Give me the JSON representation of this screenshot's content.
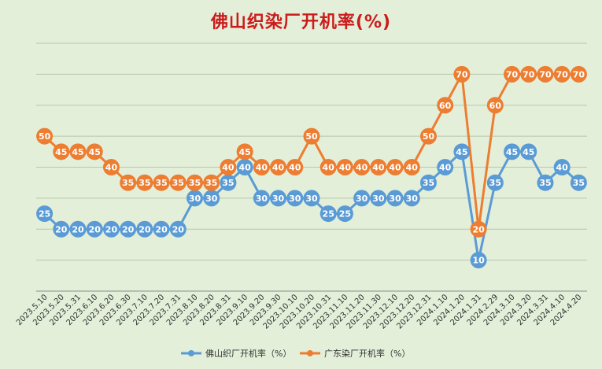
{
  "chart_data": {
    "type": "line",
    "title": "佛山织染厂开机率(%)",
    "xlabel": "",
    "ylabel": "",
    "ylim": [
      0,
      80
    ],
    "grid": "horizontal",
    "legend_position": "bottom",
    "categories": [
      "2023.5.10",
      "2023.5.20",
      "2023.5.31",
      "2023.6.10",
      "2023.6.20",
      "2023.6.30",
      "2023.7.10",
      "2023.7.20",
      "2023.7.31",
      "2023.8.10",
      "2023.8.20",
      "2023.8.31",
      "2023.9.10",
      "2023.9.20",
      "2023.9.30",
      "2023.10.10",
      "2023.10.20",
      "2023.10.31",
      "2023.11.10",
      "2023.11.20",
      "2023.11.30",
      "2023.12.10",
      "2023.12.20",
      "2023.12.31",
      "2024.1.10",
      "2024.1.20",
      "2024.1.31",
      "2024.2.29",
      "2024.3.10",
      "2024.3.20",
      "2024.3.31",
      "2024.4.10",
      "2024.4.20"
    ],
    "series": [
      {
        "name": "佛山织厂开机率（%）",
        "color": "#5b9bd5",
        "values": [
          25,
          20,
          20,
          20,
          20,
          20,
          20,
          20,
          20,
          30,
          30,
          35,
          40,
          30,
          30,
          30,
          30,
          25,
          25,
          30,
          30,
          30,
          30,
          35,
          40,
          45,
          10,
          35,
          45,
          45,
          35,
          40,
          35
        ]
      },
      {
        "name": "广东染厂开机率（%）",
        "color": "#ed7d31",
        "values": [
          50,
          45,
          45,
          45,
          40,
          35,
          35,
          35,
          35,
          35,
          35,
          40,
          45,
          40,
          40,
          40,
          50,
          40,
          40,
          40,
          40,
          40,
          40,
          50,
          60,
          70,
          20,
          60,
          70,
          70,
          70,
          70,
          70
        ]
      }
    ]
  }
}
